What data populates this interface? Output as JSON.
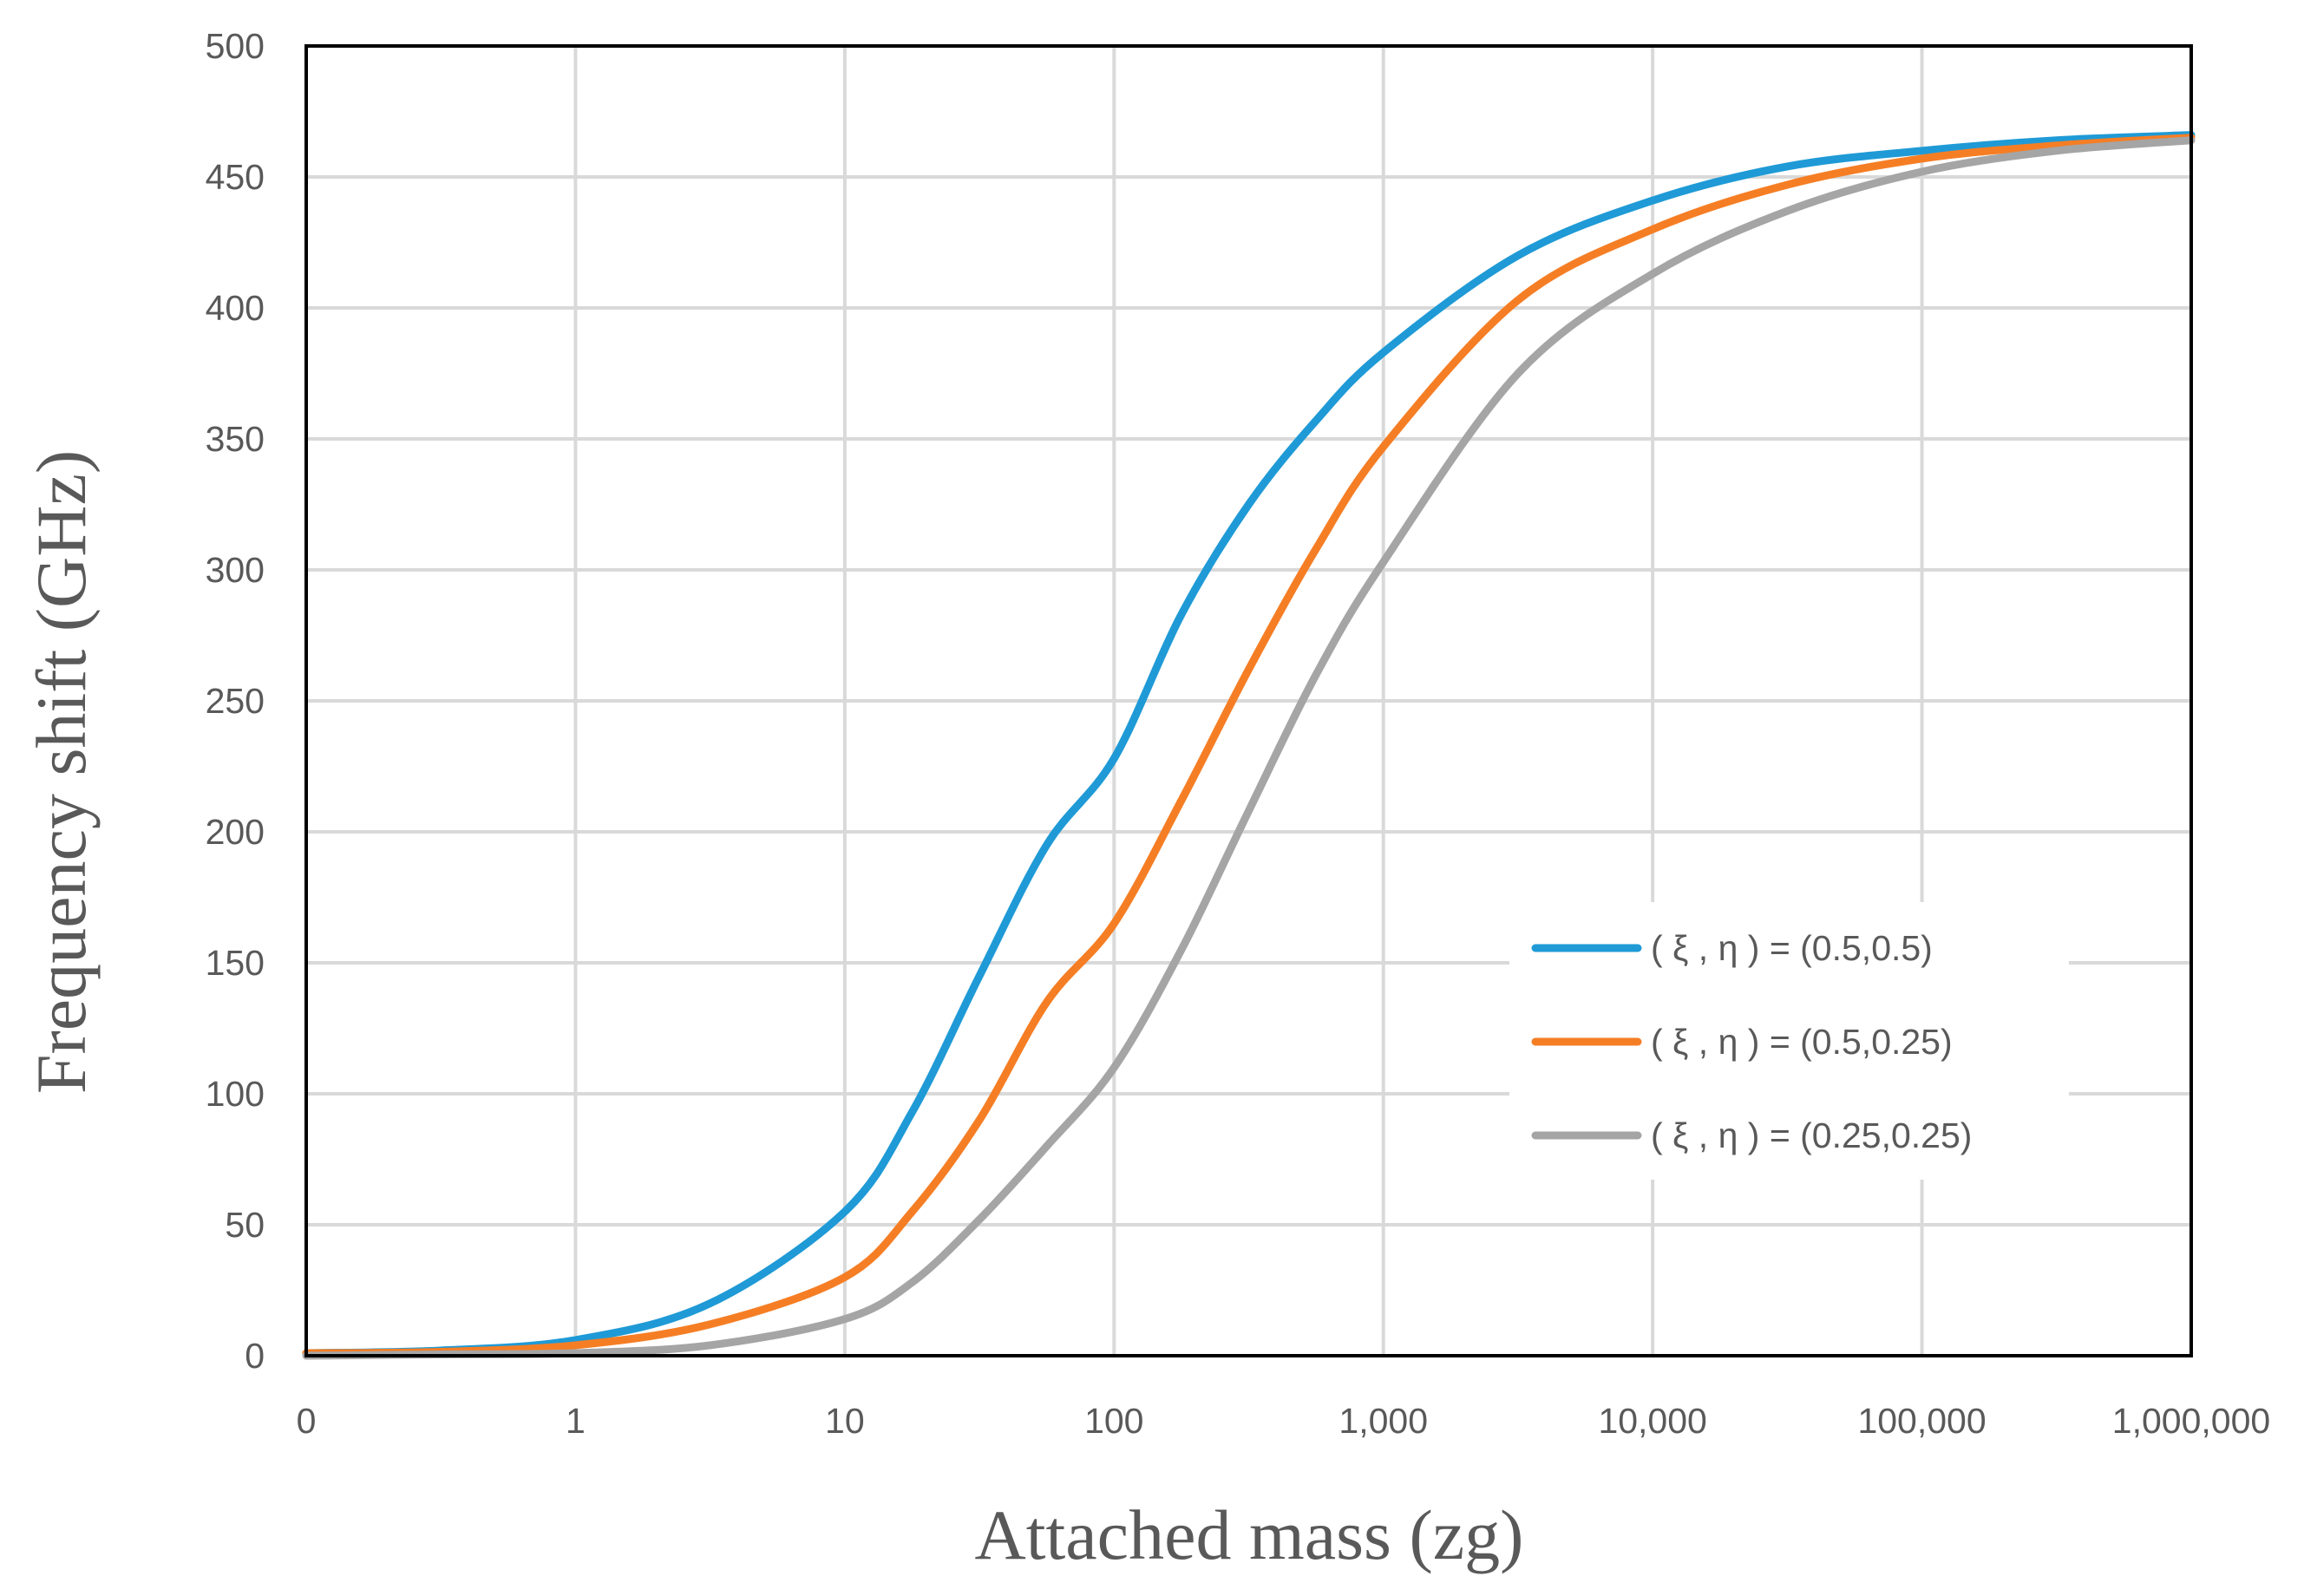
{
  "chart_data": {
    "type": "line",
    "xscale": "log10",
    "xlabel": "Attached mass (zg)",
    "ylabel": "Frequency shift (GHz)",
    "ylim": [
      0,
      500
    ],
    "yticks": [
      "0",
      "50",
      "100",
      "150",
      "200",
      "250",
      "300",
      "350",
      "400",
      "450",
      "500"
    ],
    "ytick_values": [
      0,
      50,
      100,
      150,
      200,
      250,
      300,
      350,
      400,
      450,
      500
    ],
    "xticks": [
      "0",
      "1",
      "10",
      "100",
      "1,000",
      "10,000",
      "100,000",
      "1,000,000"
    ],
    "xtick_log_values": [
      -1,
      0,
      1,
      2,
      3,
      4,
      5,
      6
    ],
    "xlim_log10": [
      -1,
      6
    ],
    "legend_position": "right-middle",
    "grid": true,
    "series": [
      {
        "name": "( ξ , η ) = (0.5,0.5)",
        "color": "#1f9ad6",
        "log10_x": [
          -1,
          -0.5,
          0,
          0.5,
          1,
          1.25,
          1.5,
          1.75,
          2,
          2.25,
          2.5,
          2.75,
          3,
          3.5,
          4,
          4.5,
          5,
          5.5,
          6
        ],
        "y": [
          1,
          2,
          6,
          20,
          55,
          93,
          145,
          195,
          228,
          283,
          325,
          357,
          383,
          420,
          441,
          454,
          460,
          464,
          466
        ]
      },
      {
        "name": "( ξ , η ) = (0.5,0.25)",
        "color": "#f57e25",
        "log10_x": [
          -1,
          -0.5,
          0,
          0.5,
          1,
          1.25,
          1.5,
          1.75,
          2,
          2.25,
          2.5,
          2.75,
          3,
          3.5,
          4,
          4.5,
          5,
          5.5,
          6
        ],
        "y": [
          1,
          1.5,
          4,
          12,
          30,
          55,
          90,
          135,
          165,
          212,
          262,
          308,
          347,
          403,
          430,
          447,
          457,
          462,
          465
        ]
      },
      {
        "name": "( ξ , η ) = (0.25,0.25)",
        "color": "#a5a5a5",
        "log10_x": [
          -1,
          -0.5,
          0,
          0.5,
          1,
          1.25,
          1.5,
          1.75,
          2,
          2.25,
          2.5,
          2.75,
          3,
          3.5,
          4,
          4.5,
          5,
          5.5,
          6
        ],
        "y": [
          0,
          0.5,
          1,
          4,
          14,
          28,
          52,
          80,
          110,
          155,
          208,
          260,
          303,
          375,
          413,
          437,
          452,
          460,
          464
        ]
      }
    ]
  }
}
